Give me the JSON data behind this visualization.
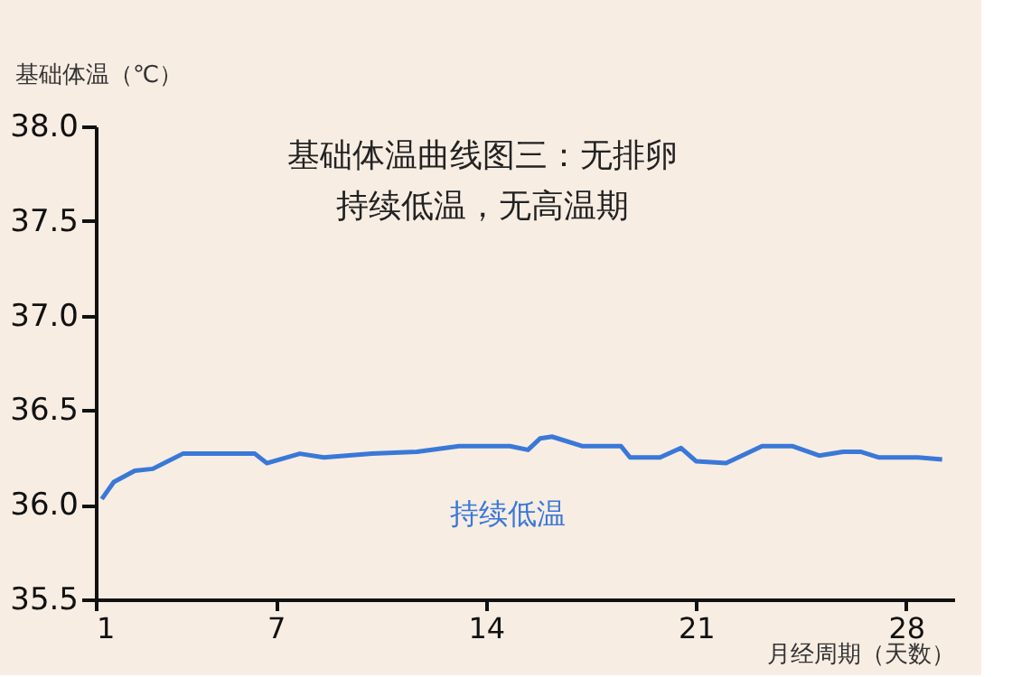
{
  "chart_data": {
    "type": "line",
    "title": "基础体温曲线图三：无排卵",
    "subtitle": "持续低温，无高温期",
    "ylabel": "基础体温（℃）",
    "xlabel": "月经周期（天数）",
    "annotations": [
      "持续低温"
    ],
    "series": [
      {
        "color": "#3a78d8",
        "x": [
          1.2,
          1.6,
          2.3,
          2.9,
          3.9,
          6.3,
          6.7,
          7.8,
          8.6,
          10.2,
          11.7,
          13.1,
          14.8,
          15.4,
          15.8,
          16.2,
          17.2,
          18.5,
          18.8,
          19.8,
          20.5,
          21.0,
          22.0,
          23.2,
          24.2,
          25.1,
          25.9,
          26.5,
          27.1,
          28.4,
          29.2
        ],
        "values": [
          36.03,
          36.12,
          36.18,
          36.19,
          36.27,
          36.27,
          36.22,
          36.27,
          36.25,
          36.27,
          36.28,
          36.31,
          36.31,
          36.29,
          36.35,
          36.36,
          36.31,
          36.31,
          36.25,
          36.25,
          36.3,
          36.23,
          36.22,
          36.31,
          36.31,
          36.26,
          36.28,
          36.28,
          36.25,
          36.25,
          36.24
        ]
      }
    ],
    "xlim": [
      1,
      29.6
    ],
    "xticks": [
      1,
      7,
      14,
      21,
      28
    ],
    "ylim": [
      35.5,
      38.0
    ],
    "yticks": [
      {
        "value": 35.5,
        "label": "35.5"
      },
      {
        "value": 36.0,
        "label": "36.0"
      },
      {
        "value": 36.5,
        "label": "36.5"
      },
      {
        "value": 37.0,
        "label": "37.0"
      },
      {
        "value": 37.5,
        "label": "37.5"
      },
      {
        "value": 38.0,
        "label": "38.0"
      }
    ],
    "grid": false,
    "marker": "none",
    "line_style": "solid"
  }
}
